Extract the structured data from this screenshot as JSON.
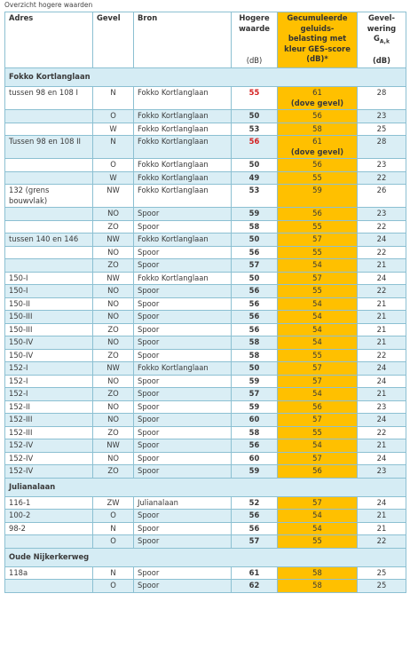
{
  "caption": "Overzicht hogere waarden",
  "header": {
    "adres": "Adres",
    "gevel": "Gevel",
    "bron": "Bron",
    "hogere": {
      "label": "Hogere waarde",
      "unit": "(dB)"
    },
    "gecumuleerd": {
      "label": "Gecumuleerde geluids-belasting met kleur GES-score (dB)*"
    },
    "gevelwering": {
      "label": "Gevel-wering",
      "symbol": "G",
      "subscript": "A,k",
      "unit": "(dB)"
    }
  },
  "ges_color": "#ffc000",
  "sections": [
    {
      "name": "Fokko Kortlanglaan",
      "rows": [
        {
          "adres": "tussen 98 en 108 I",
          "gevel": "N",
          "bron": "Fokko Kortlanglaan",
          "hogere": 55,
          "hogere_color": "#d42020",
          "gecumuleerd": 61,
          "note": "(dove gevel)",
          "gevelwering": 28
        },
        {
          "adres": null,
          "gevel": "O",
          "bron": "Fokko Kortlanglaan",
          "hogere": 50,
          "gecumuleerd": 56,
          "gevelwering": 23
        },
        {
          "adres": null,
          "gevel": "W",
          "bron": "Fokko Kortlanglaan",
          "hogere": 53,
          "gecumuleerd": 58,
          "gevelwering": 25
        },
        {
          "adres": "Tussen 98 en 108 II",
          "gevel": "N",
          "bron": "Fokko Kortlanglaan",
          "hogere": 56,
          "hogere_color": "#d42020",
          "gecumuleerd": 61,
          "note": "(dove gevel)",
          "gevelwering": 28
        },
        {
          "adres": null,
          "gevel": "O",
          "bron": "Fokko Kortlanglaan",
          "hogere": 50,
          "gecumuleerd": 56,
          "gevelwering": 23
        },
        {
          "adres": null,
          "gevel": "W",
          "bron": "Fokko Kortlanglaan",
          "hogere": 49,
          "gecumuleerd": 55,
          "gevelwering": 22
        },
        {
          "adres": "132 (grens bouwvlak)",
          "gevel": "NW",
          "bron": "Fokko Kortlanglaan",
          "hogere": 53,
          "gecumuleerd": 59,
          "gevelwering": 26
        },
        {
          "adres": null,
          "gevel": "NO",
          "bron": "Spoor",
          "hogere": 59,
          "gecumuleerd": 56,
          "gevelwering": 23
        },
        {
          "adres": null,
          "gevel": "ZO",
          "bron": "Spoor",
          "hogere": 58,
          "gecumuleerd": 55,
          "gevelwering": 22
        },
        {
          "adres": "tussen 140 en 146",
          "gevel": "NW",
          "bron": "Fokko Kortlanglaan",
          "hogere": 50,
          "gecumuleerd": 57,
          "gevelwering": 24
        },
        {
          "adres": null,
          "gevel": "NO",
          "bron": "Spoor",
          "hogere": 56,
          "gecumuleerd": 55,
          "gevelwering": 22
        },
        {
          "adres": null,
          "gevel": "ZO",
          "bron": "Spoor",
          "hogere": 57,
          "gecumuleerd": 54,
          "gevelwering": 21
        },
        {
          "adres": "150-I",
          "gevel": "NW",
          "bron": "Fokko Kortlanglaan",
          "hogere": 50,
          "gecumuleerd": 57,
          "gevelwering": 24
        },
        {
          "adres": "150-I",
          "gevel": "NO",
          "bron": "Spoor",
          "hogere": 56,
          "gecumuleerd": 55,
          "gevelwering": 22
        },
        {
          "adres": "150-II",
          "gevel": "NO",
          "bron": "Spoor",
          "hogere": 56,
          "gecumuleerd": 54,
          "gevelwering": 21
        },
        {
          "adres": "150-III",
          "gevel": "NO",
          "bron": "Spoor",
          "hogere": 56,
          "gecumuleerd": 54,
          "gevelwering": 21
        },
        {
          "adres": "150-III",
          "gevel": "ZO",
          "bron": "Spoor",
          "hogere": 56,
          "gecumuleerd": 54,
          "gevelwering": 21
        },
        {
          "adres": "150-IV",
          "gevel": "NO",
          "bron": "Spoor",
          "hogere": 58,
          "gecumuleerd": 54,
          "gevelwering": 21
        },
        {
          "adres": "150-IV",
          "gevel": "ZO",
          "bron": "Spoor",
          "hogere": 58,
          "gecumuleerd": 55,
          "gevelwering": 22
        },
        {
          "adres": "152-I",
          "gevel": "NW",
          "bron": "Fokko Kortlanglaan",
          "hogere": 50,
          "gecumuleerd": 57,
          "gevelwering": 24
        },
        {
          "adres": "152-I",
          "gevel": "NO",
          "bron": "Spoor",
          "hogere": 59,
          "gecumuleerd": 57,
          "gevelwering": 24
        },
        {
          "adres": "152-I",
          "gevel": "ZO",
          "bron": "Spoor",
          "hogere": 57,
          "gecumuleerd": 54,
          "gevelwering": 21
        },
        {
          "adres": "152-II",
          "gevel": "NO",
          "bron": "Spoor",
          "hogere": 59,
          "gecumuleerd": 56,
          "gevelwering": 23
        },
        {
          "adres": "152-III",
          "gevel": "NO",
          "bron": "Spoor",
          "hogere": 60,
          "gecumuleerd": 57,
          "gevelwering": 24
        },
        {
          "adres": "152-III",
          "gevel": "ZO",
          "bron": "Spoor",
          "hogere": 58,
          "gecumuleerd": 55,
          "gevelwering": 22
        },
        {
          "adres": "152-IV",
          "gevel": "NW",
          "bron": "Spoor",
          "hogere": 56,
          "gecumuleerd": 54,
          "gevelwering": 21
        },
        {
          "adres": "152-IV",
          "gevel": "NO",
          "bron": "Spoor",
          "hogere": 60,
          "gecumuleerd": 57,
          "gevelwering": 24
        },
        {
          "adres": "152-IV",
          "gevel": "ZO",
          "bron": "Spoor",
          "hogere": 59,
          "gecumuleerd": 56,
          "gevelwering": 23
        }
      ]
    },
    {
      "name": "Julianalaan",
      "rows": [
        {
          "adres": "116-1",
          "gevel": "ZW",
          "bron": "Julianalaan",
          "hogere": 52,
          "gecumuleerd": 57,
          "gevelwering": 24
        },
        {
          "adres": "100-2",
          "gevel": "O",
          "bron": "Spoor",
          "hogere": 56,
          "gecumuleerd": 54,
          "gevelwering": 21
        },
        {
          "adres": "98-2",
          "gevel": "N",
          "bron": "Spoor",
          "hogere": 56,
          "gecumuleerd": 54,
          "gevelwering": 21
        },
        {
          "adres": null,
          "gevel": "O",
          "bron": "Spoor",
          "hogere": 57,
          "gecumuleerd": 55,
          "gevelwering": 22
        }
      ]
    },
    {
      "name": "Oude Nijkerkerweg",
      "rows": [
        {
          "adres": "118a",
          "gevel": "N",
          "bron": "Spoor",
          "hogere": 61,
          "gecumuleerd": 58,
          "gevelwering": 25
        },
        {
          "adres": null,
          "gevel": "O",
          "bron": "Spoor",
          "hogere": 62,
          "gecumuleerd": 58,
          "gevelwering": 25
        }
      ]
    }
  ]
}
